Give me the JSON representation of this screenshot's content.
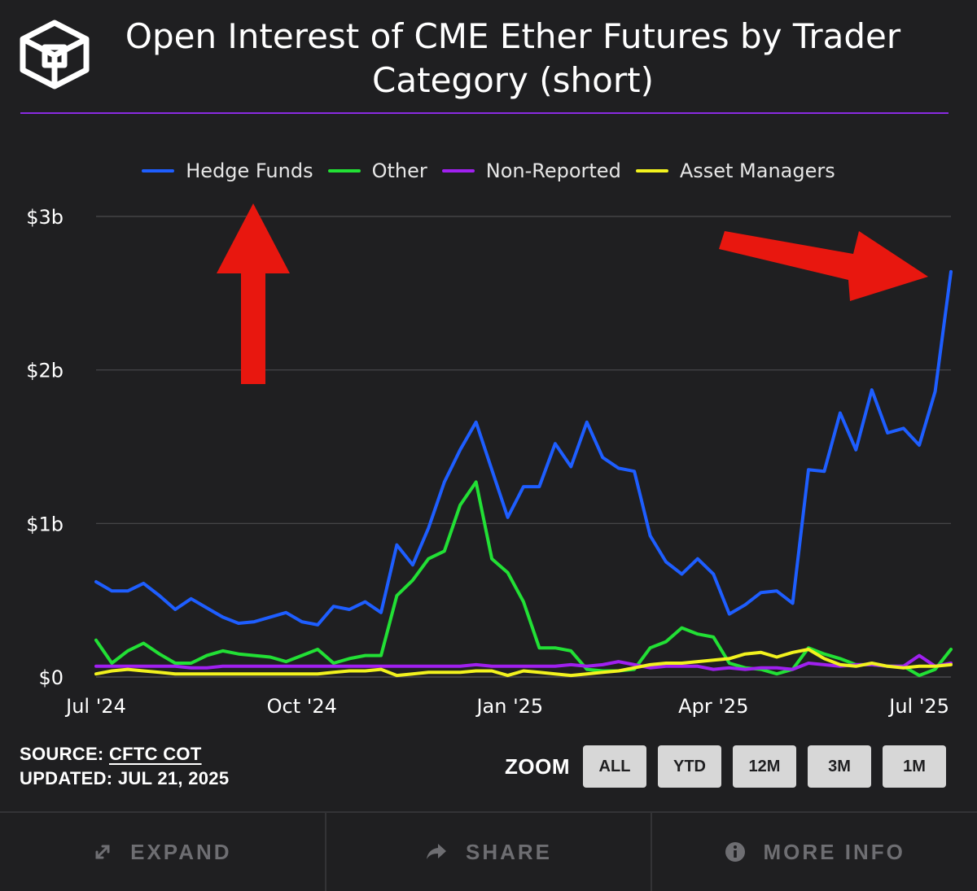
{
  "title": "Open Interest of CME Ether Futures by Trader Category (short)",
  "colors": {
    "background": "#1f1f21",
    "accent_rule": "#8a2be2",
    "grid": "#4a4a4d",
    "annotation_arrow": "#e8170f"
  },
  "chart_data": {
    "type": "line",
    "title": "Open Interest of CME Ether Futures by Trader Category (short)",
    "xlabel": "",
    "ylabel": "",
    "x_tick_labels": [
      "Jul '24",
      "Oct '24",
      "Jan '25",
      "Apr '25",
      "Jul '25"
    ],
    "y_tick_labels": [
      "$0",
      "$1b",
      "$2b",
      "$3b"
    ],
    "ylim": [
      0,
      3.0
    ],
    "y_unit": "billion USD",
    "grid": true,
    "legend_position": "top-center",
    "x": [
      "2024-07-02",
      "2024-07-09",
      "2024-07-16",
      "2024-07-23",
      "2024-07-30",
      "2024-08-06",
      "2024-08-13",
      "2024-08-20",
      "2024-08-27",
      "2024-09-03",
      "2024-09-10",
      "2024-09-17",
      "2024-09-24",
      "2024-10-01",
      "2024-10-08",
      "2024-10-15",
      "2024-10-22",
      "2024-10-29",
      "2024-11-05",
      "2024-11-12",
      "2024-11-19",
      "2024-11-26",
      "2024-12-03",
      "2024-12-10",
      "2024-12-17",
      "2024-12-24",
      "2024-12-31",
      "2025-01-07",
      "2025-01-14",
      "2025-01-21",
      "2025-01-28",
      "2025-02-04",
      "2025-02-11",
      "2025-02-18",
      "2025-02-25",
      "2025-03-04",
      "2025-03-11",
      "2025-03-18",
      "2025-03-25",
      "2025-04-01",
      "2025-04-08",
      "2025-04-15",
      "2025-04-22",
      "2025-04-29",
      "2025-05-06",
      "2025-05-13",
      "2025-05-20",
      "2025-05-27",
      "2025-06-03",
      "2025-06-10",
      "2025-06-17",
      "2025-06-24",
      "2025-07-01",
      "2025-07-08",
      "2025-07-15"
    ],
    "series": [
      {
        "name": "Hedge Funds",
        "color": "#1e5eff",
        "values": [
          0.62,
          0.56,
          0.56,
          0.61,
          0.53,
          0.44,
          0.51,
          0.45,
          0.39,
          0.35,
          0.36,
          0.39,
          0.42,
          0.36,
          0.34,
          0.46,
          0.44,
          0.49,
          0.42,
          0.86,
          0.73,
          0.97,
          1.27,
          1.48,
          1.66,
          1.35,
          1.04,
          1.24,
          1.24,
          1.52,
          1.37,
          1.66,
          1.43,
          1.36,
          1.34,
          0.92,
          0.75,
          0.67,
          0.77,
          0.67,
          0.41,
          0.47,
          0.55,
          0.56,
          0.48,
          1.35,
          1.34,
          1.72,
          1.48,
          1.87,
          1.59,
          1.62,
          1.51,
          1.86,
          2.64
        ]
      },
      {
        "name": "Other",
        "color": "#22e035",
        "values": [
          0.24,
          0.09,
          0.17,
          0.22,
          0.15,
          0.09,
          0.09,
          0.14,
          0.17,
          0.15,
          0.14,
          0.13,
          0.1,
          0.14,
          0.18,
          0.09,
          0.12,
          0.14,
          0.14,
          0.53,
          0.63,
          0.77,
          0.82,
          1.12,
          1.27,
          0.77,
          0.68,
          0.49,
          0.19,
          0.19,
          0.17,
          0.05,
          0.04,
          0.04,
          0.05,
          0.19,
          0.23,
          0.32,
          0.28,
          0.26,
          0.09,
          0.06,
          0.05,
          0.02,
          0.05,
          0.19,
          0.15,
          0.12,
          0.08,
          0.08,
          0.07,
          0.07,
          0.01,
          0.05,
          0.18
        ]
      },
      {
        "name": "Non-Reported",
        "color": "#a020f0",
        "values": [
          0.07,
          0.07,
          0.07,
          0.07,
          0.07,
          0.07,
          0.06,
          0.06,
          0.07,
          0.07,
          0.07,
          0.07,
          0.07,
          0.07,
          0.07,
          0.07,
          0.07,
          0.07,
          0.07,
          0.07,
          0.07,
          0.07,
          0.07,
          0.07,
          0.08,
          0.07,
          0.07,
          0.07,
          0.07,
          0.07,
          0.08,
          0.07,
          0.08,
          0.1,
          0.08,
          0.06,
          0.07,
          0.07,
          0.07,
          0.05,
          0.06,
          0.05,
          0.06,
          0.06,
          0.05,
          0.09,
          0.08,
          0.07,
          0.08,
          0.08,
          0.07,
          0.07,
          0.14,
          0.07,
          0.09
        ]
      },
      {
        "name": "Asset Managers",
        "color": "#f2f21e",
        "values": [
          0.02,
          0.04,
          0.05,
          0.04,
          0.03,
          0.02,
          0.02,
          0.02,
          0.02,
          0.02,
          0.02,
          0.02,
          0.02,
          0.02,
          0.02,
          0.03,
          0.04,
          0.04,
          0.05,
          0.01,
          0.02,
          0.03,
          0.03,
          0.03,
          0.04,
          0.04,
          0.01,
          0.04,
          0.03,
          0.02,
          0.01,
          0.02,
          0.03,
          0.04,
          0.06,
          0.08,
          0.09,
          0.09,
          0.1,
          0.11,
          0.12,
          0.15,
          0.16,
          0.13,
          0.16,
          0.18,
          0.12,
          0.08,
          0.07,
          0.09,
          0.07,
          0.06,
          0.07,
          0.07,
          0.08
        ]
      }
    ]
  },
  "legend": [
    "Hedge Funds",
    "Other",
    "Non-Reported",
    "Asset Managers"
  ],
  "footer": {
    "source_prefix": "SOURCE: ",
    "source_link": "CFTC COT",
    "updated": "UPDATED: JUL 21, 2025"
  },
  "zoom": {
    "label": "ZOOM",
    "buttons": [
      "ALL",
      "YTD",
      "12M",
      "3M",
      "1M"
    ]
  },
  "actions": {
    "expand": {
      "label": "EXPAND",
      "icon": "expand-arrows-icon"
    },
    "share": {
      "label": "SHARE",
      "icon": "share-arrow-icon"
    },
    "more_info": {
      "label": "MORE INFO",
      "icon": "info-circle-icon"
    }
  }
}
